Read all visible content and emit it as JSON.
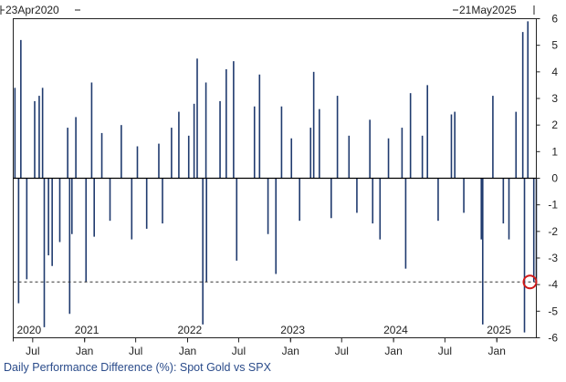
{
  "chart_data": {
    "type": "bar",
    "title": "Daily Performance Difference (%): Spot Gold vs SPX",
    "start_label": "23Apr2020",
    "end_label": "21May2025",
    "x_start": "2020-04-23",
    "x_end": "2025-05-21",
    "ylim": [
      -6,
      6
    ],
    "y_ticks": [
      6,
      5,
      4,
      3,
      2,
      1,
      0,
      -1,
      -2,
      -3,
      -4,
      -5,
      -6
    ],
    "y_tick_labels": [
      "6",
      "5",
      "4",
      "3",
      "2",
      "1",
      "0",
      "-1",
      "-2",
      "-3",
      "-4",
      "-5",
      "-6"
    ],
    "year_labels": [
      {
        "date": "2020-04-23",
        "label": "2020"
      },
      {
        "date": "2021-01-01",
        "label": "2021"
      },
      {
        "date": "2022-01-01",
        "label": "2022"
      },
      {
        "date": "2023-01-01",
        "label": "2023"
      },
      {
        "date": "2024-01-01",
        "label": "2024"
      },
      {
        "date": "2025-01-01",
        "label": "2025"
      }
    ],
    "month_labels": [
      {
        "date": "2020-07-01",
        "label": "Jul"
      },
      {
        "date": "2021-01-01",
        "label": "Jan"
      },
      {
        "date": "2021-07-01",
        "label": "Jul"
      },
      {
        "date": "2022-01-01",
        "label": "Jan"
      },
      {
        "date": "2022-07-01",
        "label": "Jul"
      },
      {
        "date": "2023-01-01",
        "label": "Jan"
      },
      {
        "date": "2023-07-01",
        "label": "Jul"
      },
      {
        "date": "2024-01-01",
        "label": "Jan"
      },
      {
        "date": "2024-07-01",
        "label": "Jul"
      },
      {
        "date": "2025-01-01",
        "label": "Jan"
      }
    ],
    "reference_line": {
      "y": -3.9,
      "style": "dashed"
    },
    "highlight": {
      "date": "2025-05-21",
      "y": -3.9,
      "shape": "circle",
      "color": "#d11a1a"
    },
    "series": [
      {
        "color": "#1f3a6e",
        "points": [
          [
            "2020-04-29",
            3.4
          ],
          [
            "2020-05-12",
            -4.7
          ],
          [
            "2020-05-20",
            5.2
          ],
          [
            "2020-06-10",
            -3.8
          ],
          [
            "2020-07-08",
            2.9
          ],
          [
            "2020-07-24",
            3.1
          ],
          [
            "2020-08-05",
            3.4
          ],
          [
            "2020-08-11",
            -5.6
          ],
          [
            "2020-08-26",
            -2.9
          ],
          [
            "2020-09-08",
            -3.3
          ],
          [
            "2020-10-05",
            -2.4
          ],
          [
            "2020-11-02",
            1.9
          ],
          [
            "2020-11-09",
            -5.1
          ],
          [
            "2020-11-17",
            -2.1
          ],
          [
            "2020-12-01",
            2.3
          ],
          [
            "2021-01-06",
            -3.9
          ],
          [
            "2021-01-26",
            3.6
          ],
          [
            "2021-02-04",
            -2.2
          ],
          [
            "2021-03-03",
            1.7
          ],
          [
            "2021-04-01",
            -1.6
          ],
          [
            "2021-05-11",
            2.0
          ],
          [
            "2021-06-17",
            -2.3
          ],
          [
            "2021-07-07",
            1.2
          ],
          [
            "2021-08-09",
            -1.9
          ],
          [
            "2021-09-21",
            1.3
          ],
          [
            "2021-10-04",
            -1.7
          ],
          [
            "2021-11-05",
            1.9
          ],
          [
            "2021-12-01",
            2.5
          ],
          [
            "2022-01-05",
            1.6
          ],
          [
            "2022-01-24",
            2.8
          ],
          [
            "2022-02-04",
            4.5
          ],
          [
            "2022-02-24",
            -5.5
          ],
          [
            "2022-03-07",
            3.6
          ],
          [
            "2022-03-09",
            -3.9
          ],
          [
            "2022-04-26",
            2.9
          ],
          [
            "2022-05-18",
            4.1
          ],
          [
            "2022-06-13",
            4.4
          ],
          [
            "2022-06-24",
            -3.1
          ],
          [
            "2022-08-26",
            2.7
          ],
          [
            "2022-09-13",
            3.9
          ],
          [
            "2022-10-13",
            -2.1
          ],
          [
            "2022-11-10",
            -3.6
          ],
          [
            "2022-11-30",
            2.7
          ],
          [
            "2023-01-04",
            1.5
          ],
          [
            "2023-02-02",
            -1.6
          ],
          [
            "2023-03-13",
            1.9
          ],
          [
            "2023-03-24",
            4.0
          ],
          [
            "2023-04-13",
            2.6
          ],
          [
            "2023-05-25",
            -1.5
          ],
          [
            "2023-06-16",
            3.1
          ],
          [
            "2023-07-27",
            1.6
          ],
          [
            "2023-08-24",
            -1.3
          ],
          [
            "2023-10-09",
            2.2
          ],
          [
            "2023-10-19",
            -1.7
          ],
          [
            "2023-11-14",
            -2.3
          ],
          [
            "2023-12-14",
            1.5
          ],
          [
            "2024-01-31",
            1.9
          ],
          [
            "2024-02-13",
            -3.4
          ],
          [
            "2024-03-01",
            3.2
          ],
          [
            "2024-04-12",
            1.6
          ],
          [
            "2024-04-30",
            3.5
          ],
          [
            "2024-06-07",
            -1.6
          ],
          [
            "2024-07-24",
            2.4
          ],
          [
            "2024-08-05",
            2.5
          ],
          [
            "2024-09-06",
            -1.3
          ],
          [
            "2024-11-07",
            -2.3
          ],
          [
            "2024-11-12",
            -5.5
          ],
          [
            "2024-12-18",
            3.1
          ],
          [
            "2025-01-24",
            -1.7
          ],
          [
            "2025-02-13",
            -2.3
          ],
          [
            "2025-03-10",
            2.5
          ],
          [
            "2025-04-03",
            5.5
          ],
          [
            "2025-04-09",
            -5.8
          ],
          [
            "2025-04-21",
            5.9
          ],
          [
            "2025-05-12",
            -3.9
          ],
          [
            "2025-05-21",
            -3.9
          ]
        ]
      }
    ]
  }
}
